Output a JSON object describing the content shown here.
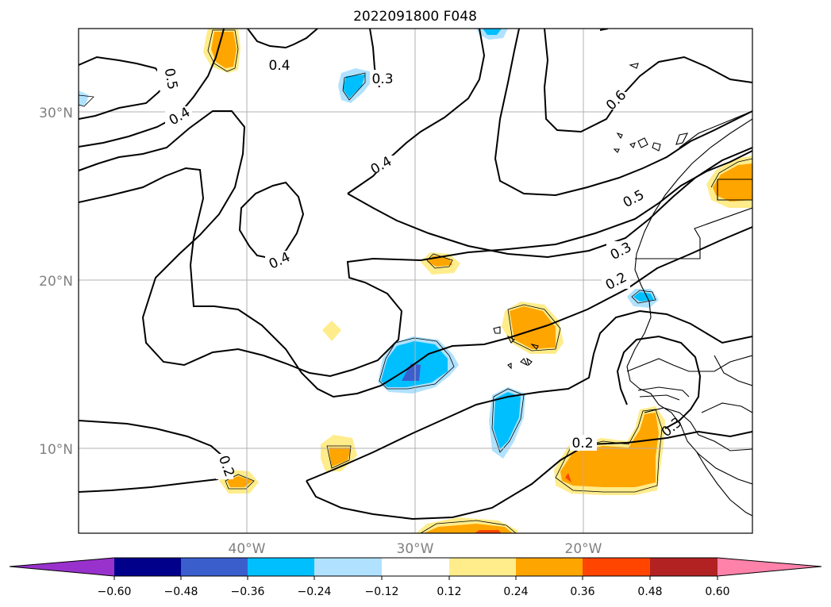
{
  "map": {
    "title": "2022091800 F048",
    "lat_labels": [
      "30°N",
      "20°N",
      "10°N"
    ],
    "lon_labels": [
      "40°W",
      "30°W",
      "20°W"
    ],
    "contour_labels": [
      "0.5",
      "0.4",
      "0.4",
      "0.3",
      "0.4",
      "0.4",
      "0.6",
      "0.5",
      "0.3",
      "0.2",
      "0.2",
      "0.2",
      "0.3"
    ]
  },
  "colorbar": {
    "tick_labels": [
      "−0.60",
      "−0.48",
      "−0.36",
      "−0.24",
      "−0.12",
      "0.12",
      "0.24",
      "0.36",
      "0.48",
      "0.60"
    ],
    "colors": [
      "#9932cc",
      "#00008b",
      "#3a5fcd",
      "#00bfff",
      "#b0e2ff",
      "#ffffff",
      "#ffec8b",
      "#ffa500",
      "#ff4500",
      "#b22222",
      "#ff82ab"
    ]
  },
  "fill_colors": {
    "light_yellow": "#ffec8b",
    "orange": "#ffa500",
    "red_orange": "#ff4500",
    "light_blue": "#b0e2ff",
    "deep_sky_blue": "#00bfff",
    "royal_blue": "#3a5fcd"
  }
}
